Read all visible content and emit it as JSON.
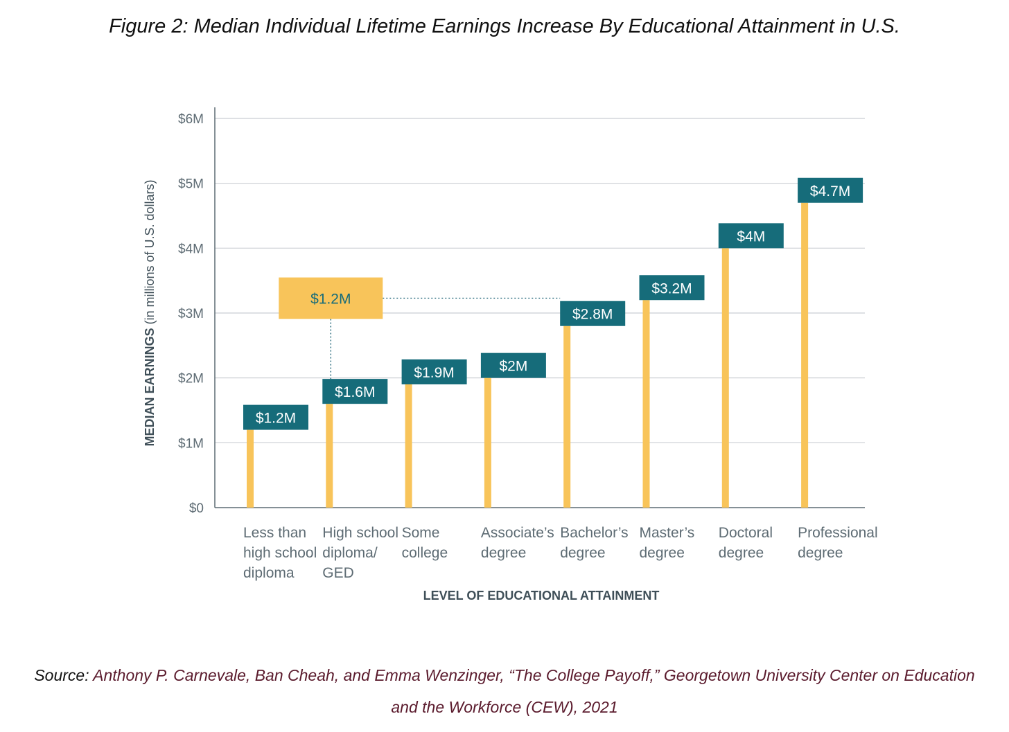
{
  "figure": {
    "title": "Figure 2: Median Individual Lifetime Earnings Increase By Educational Attainment in U.S."
  },
  "source": {
    "lead": "Source: ",
    "text": "Anthony P. Carnevale, Ban Cheah, and Emma Wenzinger, “The College Payoff,” Georgetown University Center on Education and the Workforce (CEW), 2021"
  },
  "colors": {
    "bar": "#f8c45a",
    "label_box": "#166c7a",
    "label_text": "#ffffff",
    "grid": "#c9ced3",
    "axis": "#5d6b73",
    "axis_title": "#3f4f58",
    "connector": "#2f6f80"
  },
  "chart_data": {
    "type": "bar",
    "categories": [
      [
        "Less than",
        "high school",
        "diploma"
      ],
      [
        "High school",
        "diploma/",
        "GED"
      ],
      [
        "Some",
        "college"
      ],
      [
        "Associate’s",
        "degree"
      ],
      [
        "Bachelor’s",
        "degree"
      ],
      [
        "Master’s",
        "degree"
      ],
      [
        "Doctoral",
        "degree"
      ],
      [
        "Professional",
        "degree"
      ]
    ],
    "values": [
      1.2,
      1.6,
      1.9,
      2.0,
      2.8,
      3.2,
      4.0,
      4.7
    ],
    "data_labels": [
      "$1.2M",
      "$1.6M",
      "$1.9M",
      "$2M",
      "$2.8M",
      "$3.2M",
      "$4M",
      "$4.7M"
    ],
    "ylim": [
      0,
      6
    ],
    "yticks": [
      0,
      1,
      2,
      3,
      4,
      5,
      6
    ],
    "ytick_labels": [
      "$0",
      "$1M",
      "$2M",
      "$3M",
      "$4M",
      "$5M",
      "$6M"
    ],
    "xlabel": "LEVEL OF EDUCATIONAL ATTAINMENT",
    "ylabel_bold": "MEDIAN EARNINGS",
    "ylabel_light": " (in millions of U.S. dollars)",
    "grid": true,
    "annotation": {
      "label": "$1.2M",
      "value": 3.1,
      "from_category": 1,
      "to_category": 4
    }
  }
}
